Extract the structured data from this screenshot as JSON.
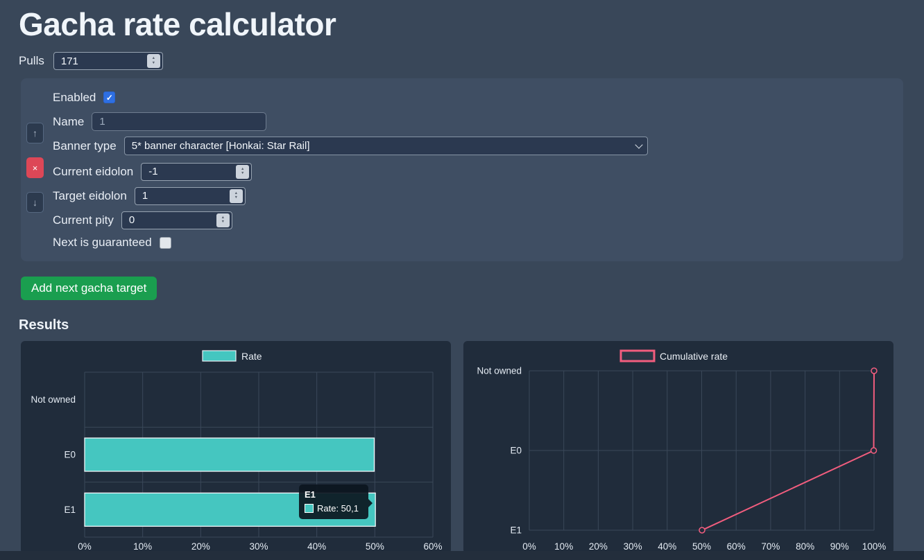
{
  "page": {
    "title": "Gacha rate calculator"
  },
  "pulls": {
    "label": "Pulls",
    "value": "171"
  },
  "target": {
    "enabled_label": "Enabled",
    "enabled_checked": true,
    "name_label": "Name",
    "name_value": "1",
    "banner_label": "Banner type",
    "banner_value": "5* banner character [Honkai: Star Rail]",
    "current_eidolon_label": "Current eidolon",
    "current_eidolon_value": "-1",
    "target_eidolon_label": "Target eidolon",
    "target_eidolon_value": "1",
    "current_pity_label": "Current pity",
    "current_pity_value": "0",
    "guaranteed_label": "Next is guaranteed",
    "guaranteed_checked": false
  },
  "icons": {
    "check": "✓",
    "spinner_up": "▲",
    "spinner_down": "▼",
    "move_up": "↑",
    "remove": "×",
    "move_down": "↓"
  },
  "actions": {
    "add_target": "Add next gacha target"
  },
  "results": {
    "heading": "Results"
  },
  "chart_data": [
    {
      "type": "bar",
      "orientation": "horizontal",
      "legend": "Rate",
      "legend_position": "top",
      "categories": [
        "Not owned",
        "E0",
        "E1"
      ],
      "values": [
        0,
        49.9,
        50.1
      ],
      "xlabel": "",
      "ylabel": "",
      "xlim": [
        0,
        60
      ],
      "xticks": [
        "0%",
        "10%",
        "20%",
        "30%",
        "40%",
        "50%",
        "60%"
      ],
      "grid": true,
      "colors": {
        "bar": "#45c6c0",
        "bar_border": "#f2f6f9"
      },
      "tooltip": {
        "title": "E1",
        "label": "Rate: 50,1"
      }
    },
    {
      "type": "line",
      "legend": "Cumulative rate",
      "legend_position": "top",
      "categories": [
        "Not owned",
        "E0",
        "E1"
      ],
      "values": [
        100,
        99.9,
        50.1
      ],
      "xlabel": "",
      "ylabel": "",
      "xlim": [
        0,
        100
      ],
      "xticks": [
        "0%",
        "10%",
        "20%",
        "30%",
        "40%",
        "50%",
        "60%",
        "70%",
        "80%",
        "90%",
        "100%"
      ],
      "grid": true,
      "color": "#f25d7e"
    }
  ]
}
